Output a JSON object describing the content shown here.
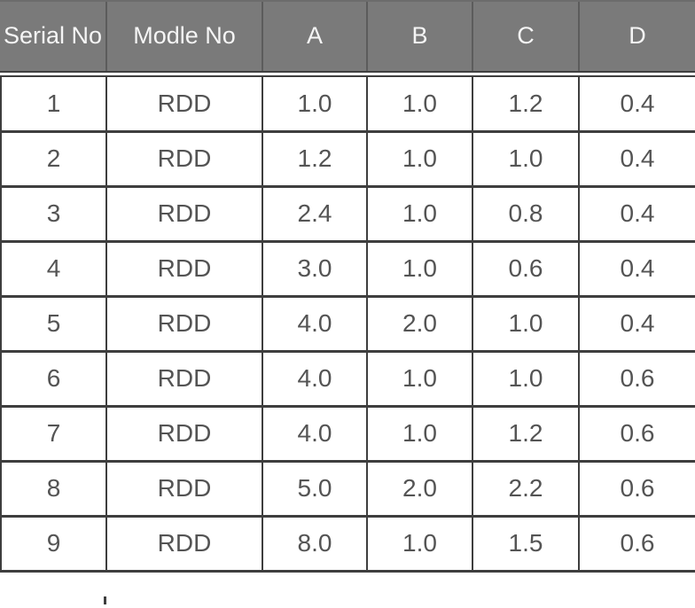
{
  "table": {
    "columns": [
      {
        "label": "Serial No"
      },
      {
        "label": "Modle No"
      },
      {
        "label": "A"
      },
      {
        "label": "B"
      },
      {
        "label": "C"
      },
      {
        "label": "D"
      }
    ],
    "rows": [
      [
        "1",
        "RDD",
        "1.0",
        "1.0",
        "1.2",
        "0.4"
      ],
      [
        "2",
        "RDD",
        "1.2",
        "1.0",
        "1.0",
        "0.4"
      ],
      [
        "3",
        "RDD",
        "2.4",
        "1.0",
        "0.8",
        "0.4"
      ],
      [
        "4",
        "RDD",
        "3.0",
        "1.0",
        "0.6",
        "0.4"
      ],
      [
        "5",
        "RDD",
        "4.0",
        "2.0",
        "1.0",
        "0.4"
      ],
      [
        "6",
        "RDD",
        "4.0",
        "1.0",
        "1.0",
        "0.6"
      ],
      [
        "7",
        "RDD",
        "4.0",
        "1.0",
        "1.2",
        "0.6"
      ],
      [
        "8",
        "RDD",
        "5.0",
        "2.0",
        "2.2",
        "0.6"
      ],
      [
        "9",
        "RDD",
        "8.0",
        "1.0",
        "1.5",
        "0.6"
      ]
    ]
  },
  "colors": {
    "header_background": "#7a7a7a",
    "header_text": "#f5f5f5",
    "header_divider": "#5c5c5c",
    "body_border": "#3e3e3e",
    "body_text": "#545454",
    "page_background": "#ffffff"
  }
}
